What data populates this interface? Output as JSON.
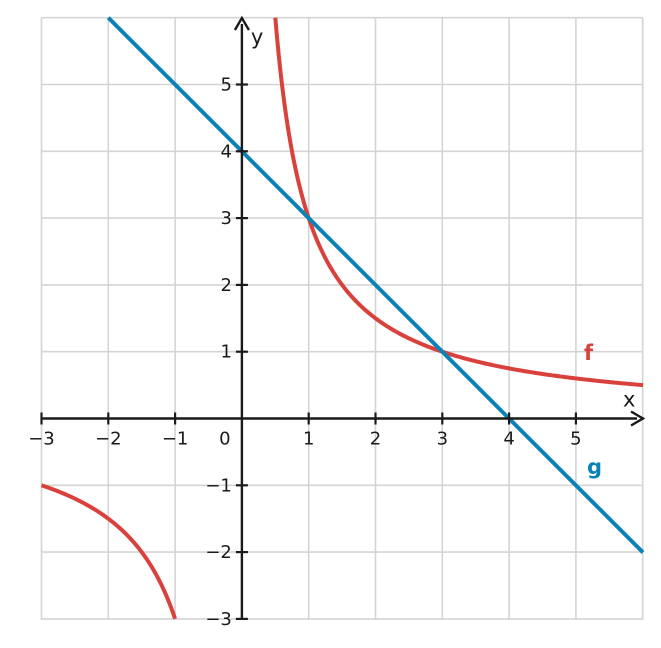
{
  "chart_data": {
    "type": "line",
    "title": "",
    "xlabel": "x",
    "ylabel": "y",
    "xlim": [
      -3,
      6
    ],
    "ylim": [
      -3,
      6
    ],
    "grid": true,
    "x_ticks": [
      -3,
      -2,
      -1,
      0,
      1,
      2,
      3,
      4,
      5
    ],
    "x_tick_labels": [
      "−3",
      "−2",
      "−1",
      "0",
      "1",
      "2",
      "3",
      "4",
      "5"
    ],
    "y_ticks": [
      -3,
      -2,
      -1,
      1,
      2,
      3,
      4,
      5
    ],
    "y_tick_labels": [
      "−3",
      "−2",
      "−1",
      "1",
      "2",
      "3",
      "4",
      "5"
    ],
    "series": [
      {
        "name": "f",
        "color": "#d9413d",
        "function": "3/x",
        "x": [
          -3,
          -2.5,
          -2,
          -1.5,
          -1.25,
          -1,
          0.5,
          0.6,
          0.75,
          1,
          1.5,
          2,
          2.5,
          3,
          4,
          5,
          6
        ],
        "y": [
          -1,
          -1.2,
          -1.5,
          -2,
          -2.4,
          -3,
          6,
          5,
          4,
          3,
          2,
          1.5,
          1.2,
          1,
          0.75,
          0.6,
          0.5
        ]
      },
      {
        "name": "g",
        "color": "#0a82b4",
        "function": "-x + 4",
        "x": [
          -2,
          -1,
          0,
          1,
          2,
          3,
          4,
          5,
          6
        ],
        "y": [
          6,
          5,
          4,
          3,
          2,
          1,
          0,
          -1,
          -2
        ]
      }
    ]
  }
}
